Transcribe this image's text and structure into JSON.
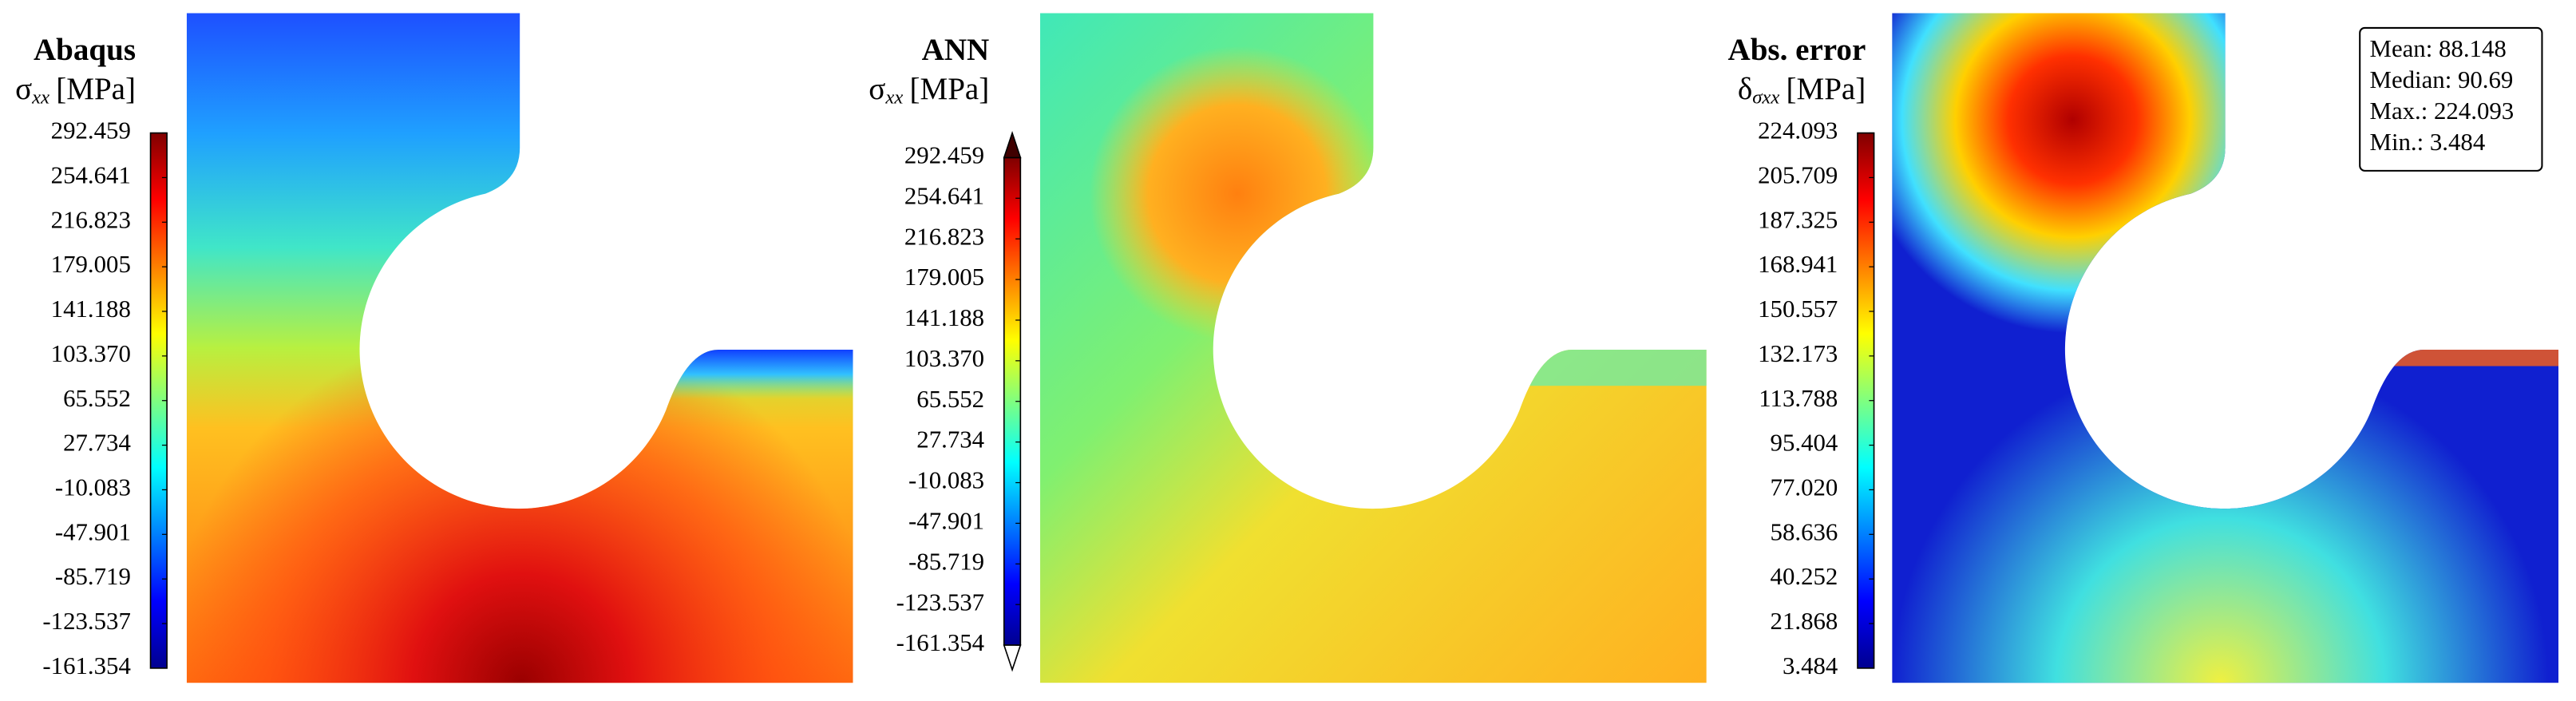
{
  "chart_data": [
    {
      "type": "contour",
      "title": "Abaqus",
      "colorbar_label": {
        "symbol": "σ",
        "subscript": "xx",
        "unit": "[MPa]"
      },
      "colormap": "jet",
      "clim": [
        -161.354,
        292.459
      ],
      "ticks": [
        292.459,
        254.641,
        216.823,
        179.005,
        141.188,
        {
          "value": 103.37,
          "label": "103.370"
        },
        65.552,
        27.734,
        -10.083,
        -47.901,
        -85.719,
        -123.537,
        -161.354
      ]
    },
    {
      "type": "contour",
      "title": "ANN",
      "colorbar_label": {
        "symbol": "σ",
        "subscript": "xx",
        "unit": "[MPa]"
      },
      "colormap": "jet",
      "extend": "both",
      "clim": [
        -161.354,
        292.459
      ],
      "ticks": [
        292.459,
        254.641,
        216.823,
        179.005,
        141.188,
        {
          "value": 103.37,
          "label": "103.370"
        },
        65.552,
        27.734,
        -10.083,
        -47.901,
        -85.719,
        -123.537,
        -161.354
      ]
    },
    {
      "type": "contour",
      "title": "Abs. error",
      "colorbar_label": {
        "symbol": "δ",
        "subscript": "σxx",
        "unit": "[MPa]"
      },
      "colormap": "jet",
      "clim": [
        3.484,
        224.093
      ],
      "ticks": [
        224.093,
        205.709,
        187.325,
        168.941,
        150.557,
        132.173,
        113.788,
        95.404,
        {
          "value": 77.02,
          "label": "77.020"
        },
        58.636,
        40.252,
        21.868,
        3.484
      ],
      "annotations": [
        "Mean: 88.148",
        "Median: 90.69",
        "Max.: 224.093",
        "Min.: 3.484"
      ]
    }
  ]
}
